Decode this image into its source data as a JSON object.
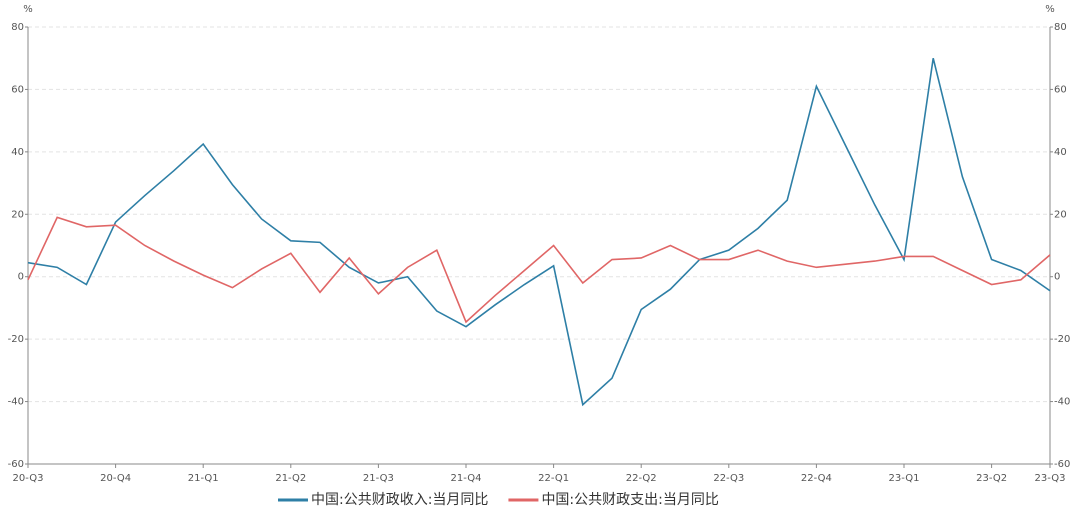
{
  "chart_data": {
    "type": "line",
    "y_unit": "%",
    "y2_unit": "%",
    "categories": [
      "20-Q3",
      null,
      null,
      "20-Q4",
      null,
      null,
      "21-Q1",
      null,
      null,
      "21-Q2",
      null,
      null,
      "21-Q3",
      null,
      null,
      "21-Q4",
      null,
      null,
      "22-Q1",
      null,
      null,
      "22-Q2",
      null,
      null,
      "22-Q3",
      null,
      null,
      "22-Q4",
      null,
      null,
      "23-Q1",
      null,
      null,
      "23-Q2",
      null,
      "23-Q3"
    ],
    "series": [
      {
        "name": "中国:公共财政收入:当月同比",
        "color": "#2e7fa6",
        "values": [
          4.5,
          3,
          -2.5,
          17.5,
          26,
          34,
          42.5,
          29.5,
          18.5,
          11.5,
          11,
          3,
          -2,
          0,
          -11,
          -16,
          -9,
          -2.5,
          3.5,
          -41,
          -32.5,
          -10.5,
          -4,
          5.5,
          8.5,
          15.5,
          24.5,
          61,
          42,
          23,
          5.5,
          70,
          32,
          5.5,
          2,
          -4.5
        ]
      },
      {
        "name": "中国:公共财政支出:当月同比",
        "color": "#e06666",
        "values": [
          -1,
          19,
          16,
          16.5,
          10,
          5,
          0.5,
          -3.5,
          2.5,
          7.5,
          -5,
          6,
          -5.5,
          3,
          8.5,
          -14.5,
          -6,
          2,
          10,
          -2,
          5.5,
          6,
          10,
          5.5,
          5.5,
          8.5,
          5,
          3,
          4,
          5,
          6.5,
          6.5,
          2,
          -2.5,
          -1,
          7
        ]
      }
    ],
    "ylim": [
      -60,
      80
    ],
    "yticks": [
      -60,
      -40,
      -20,
      0,
      20,
      40,
      60,
      80
    ],
    "y2lim": [
      -60,
      80
    ],
    "y2ticks": [
      -60,
      -40,
      -20,
      0,
      20,
      40,
      60,
      80
    ],
    "grid": true
  }
}
